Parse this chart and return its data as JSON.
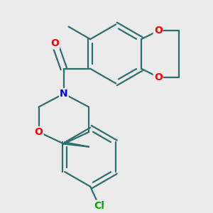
{
  "bg_color": "#ebebeb",
  "bond_color": "#2d6e6e",
  "bond_width": 1.6,
  "atom_colors": {
    "O": "#ff0000",
    "N": "#0000ff",
    "Cl": "#00aa00",
    "C": "#2d6e6e"
  },
  "font_size": 10
}
